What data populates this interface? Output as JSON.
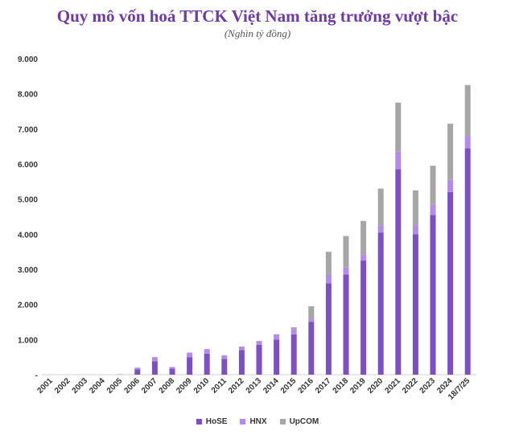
{
  "chart_data": {
    "type": "bar",
    "stacked": true,
    "title": "Quy mô vốn hoá TTCK Việt Nam tăng trưởng vượt bậc",
    "subtitle": "(Nghìn tỷ đồng)",
    "categories": [
      "2001",
      "2002",
      "2003",
      "2004",
      "2005",
      "2006",
      "2007",
      "2008",
      "2009",
      "2010",
      "2011",
      "2012",
      "2013",
      "2014",
      "2015",
      "2016",
      "2017",
      "2018",
      "2019",
      "2020",
      "2021",
      "2022",
      "2023",
      "2024",
      "18/7/25"
    ],
    "y_tick_labels": [
      "-",
      "1.000",
      "2.000",
      "3.000",
      "4.000",
      "5.000",
      "6.000",
      "7.000",
      "8.000",
      "9.000"
    ],
    "ylim": [
      0,
      9000
    ],
    "grid": false,
    "legend_position": "bottom",
    "series": [
      {
        "name": "HoSE",
        "color": "#7e4fc4",
        "values": [
          0,
          0,
          0,
          0,
          5,
          150,
          380,
          170,
          500,
          600,
          450,
          700,
          850,
          1000,
          1150,
          1500,
          2600,
          2850,
          3250,
          4050,
          5850,
          4000,
          4550,
          5200,
          6450
        ]
      },
      {
        "name": "HNX",
        "color": "#b48be8",
        "values": [
          0,
          0,
          0,
          0,
          2,
          50,
          120,
          50,
          130,
          130,
          100,
          100,
          110,
          150,
          150,
          100,
          250,
          200,
          180,
          200,
          500,
          250,
          300,
          350,
          350
        ]
      },
      {
        "name": "UpCOM",
        "color": "#a6a6a6",
        "values": [
          0,
          0,
          0,
          0,
          0,
          0,
          0,
          0,
          0,
          0,
          0,
          0,
          0,
          0,
          50,
          350,
          650,
          900,
          950,
          1050,
          1400,
          1000,
          1100,
          1600,
          1450
        ]
      }
    ]
  }
}
